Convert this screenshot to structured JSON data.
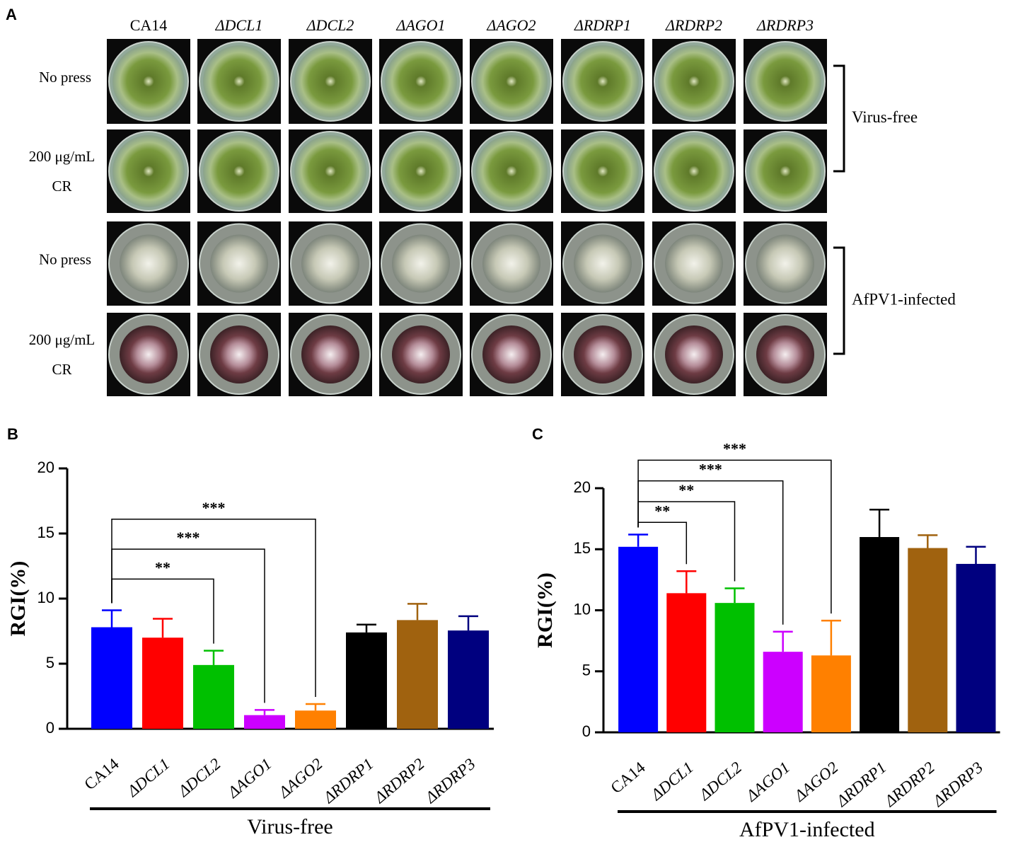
{
  "panel_a": {
    "label": "A",
    "columns": [
      "CA14",
      "ΔDCL1",
      "ΔDCL2",
      "ΔAGO1",
      "ΔAGO2",
      "ΔRDRP1",
      "ΔRDRP2",
      "ΔRDRP3"
    ],
    "rows": [
      "No press",
      "200 μg/mL CR",
      "No press",
      "200 μg/mL CR"
    ],
    "groups": [
      "Virus-free",
      "AfPV1-infected"
    ]
  },
  "chart_data": [
    {
      "type": "bar",
      "panel": "B",
      "ylabel": "RGI(%)",
      "xlabel": "Virus-free",
      "categories": [
        "CA14",
        "ΔDCL1",
        "ΔDCL2",
        "ΔAGO1",
        "ΔAGO2",
        "ΔRDRP1",
        "ΔRDRP2",
        "ΔRDRP3"
      ],
      "values": [
        7.8,
        7.0,
        4.9,
        1.05,
        1.4,
        7.4,
        8.35,
        7.55
      ],
      "errors": [
        1.3,
        1.45,
        1.1,
        0.4,
        0.5,
        0.6,
        1.25,
        1.1
      ],
      "colors": [
        "#0000ff",
        "#ff0000",
        "#00c000",
        "#cc00ff",
        "#ff8000",
        "#000000",
        "#a0620f",
        "#00007f"
      ],
      "ylim": [
        0,
        20
      ],
      "yticks": [
        0,
        5,
        10,
        15,
        20
      ],
      "comparisons": [
        {
          "from": "CA14",
          "to": "ΔDCL2",
          "label": "**"
        },
        {
          "from": "CA14",
          "to": "ΔAGO1",
          "label": "***"
        },
        {
          "from": "CA14",
          "to": "ΔAGO2",
          "label": "***"
        }
      ]
    },
    {
      "type": "bar",
      "panel": "C",
      "ylabel": "RGI(%)",
      "xlabel": "AfPV1-infected",
      "categories": [
        "CA14",
        "ΔDCL1",
        "ΔDCL2",
        "ΔAGO1",
        "ΔAGO2",
        "ΔRDRP1",
        "ΔRDRP2",
        "ΔRDRP3"
      ],
      "values": [
        15.2,
        11.4,
        10.6,
        6.6,
        6.3,
        16.0,
        15.1,
        13.8
      ],
      "errors": [
        1.0,
        1.8,
        1.2,
        1.65,
        2.85,
        2.25,
        1.05,
        1.4
      ],
      "colors": [
        "#0000ff",
        "#ff0000",
        "#00c000",
        "#cc00ff",
        "#ff8000",
        "#000000",
        "#a0620f",
        "#00007f"
      ],
      "ylim": [
        0,
        20
      ],
      "yticks": [
        0,
        5,
        10,
        15,
        20
      ],
      "comparisons": [
        {
          "from": "CA14",
          "to": "ΔDCL1",
          "label": "**"
        },
        {
          "from": "CA14",
          "to": "ΔDCL2",
          "label": "**"
        },
        {
          "from": "CA14",
          "to": "ΔAGO1",
          "label": "***"
        },
        {
          "from": "CA14",
          "to": "ΔAGO2",
          "label": "***"
        }
      ]
    }
  ]
}
